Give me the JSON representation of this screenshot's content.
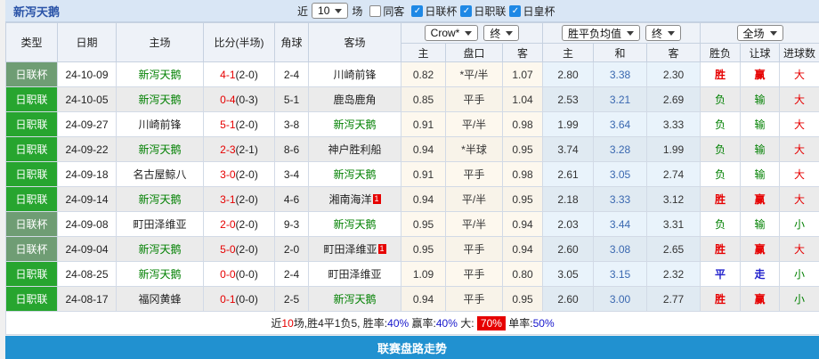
{
  "title": "新泻天鹅",
  "toolbar": {
    "recent_label": "近",
    "games_count": "10",
    "games_suffix": "场",
    "same_venue_label": "同客",
    "same_venue_checked": false,
    "leagues": [
      {
        "label": "日联杯",
        "checked": true
      },
      {
        "label": "日职联",
        "checked": true
      },
      {
        "label": "日皇杯",
        "checked": true
      }
    ]
  },
  "selectors": {
    "asia_provider": "Crow*",
    "asia_time": "终",
    "euro_type": "胜平负均值",
    "euro_time": "终",
    "scope": "全场"
  },
  "headers": {
    "type": "类型",
    "date": "日期",
    "home": "主场",
    "score": "比分(半场)",
    "corner": "角球",
    "away": "客场",
    "asia_home": "主",
    "handicap": "盘口",
    "asia_away": "客",
    "euro_home": "主",
    "euro_draw": "和",
    "euro_away": "客",
    "result": "胜负",
    "spread": "让球",
    "goals": "进球数"
  },
  "colors": {
    "accent_bar": "#2191d0",
    "self_team": "#008000",
    "score_red": "#e60000",
    "draw_blue": "#3a68b0"
  },
  "type_colors": {
    "日联杯": "#6f9d74",
    "日职联": "#27a52f"
  },
  "value_styles": {
    "胜": {
      "color": "#e60000",
      "bold": true
    },
    "负": {
      "color": "#008000",
      "bold": false
    },
    "平": {
      "color": "#2222cc",
      "bold": true
    },
    "赢": {
      "color": "#e60000",
      "bold": true
    },
    "输": {
      "color": "#008000",
      "bold": false
    },
    "走": {
      "color": "#2222cc",
      "bold": true
    },
    "大": {
      "color": "#e60000",
      "bold": false
    },
    "小": {
      "color": "#008000",
      "bold": false
    }
  },
  "rows": [
    {
      "type": "日联杯",
      "date": "24-10-09",
      "home": "新泻天鹅",
      "home_self": true,
      "home_badge": "",
      "score_ft": "4-1",
      "score_ht": "(2-0)",
      "corner": "2-4",
      "away": "川崎前锋",
      "away_self": false,
      "away_badge": "",
      "asia_home": "0.82",
      "handicap": "*平/半",
      "handicap_red": true,
      "asia_away": "1.07",
      "euro_home": "2.80",
      "euro_draw": "3.38",
      "euro_away": "2.30",
      "result": "胜",
      "spread": "赢",
      "goals": "大"
    },
    {
      "type": "日职联",
      "date": "24-10-05",
      "home": "新泻天鹅",
      "home_self": true,
      "home_badge": "",
      "score_ft": "0-4",
      "score_ht": "(0-3)",
      "corner": "5-1",
      "away": "鹿岛鹿角",
      "away_self": false,
      "away_badge": "",
      "asia_home": "0.85",
      "handicap": "平手",
      "handicap_red": false,
      "asia_away": "1.04",
      "euro_home": "2.53",
      "euro_draw": "3.21",
      "euro_away": "2.69",
      "result": "负",
      "spread": "输",
      "goals": "大"
    },
    {
      "type": "日职联",
      "date": "24-09-27",
      "home": "川崎前锋",
      "home_self": false,
      "home_badge": "",
      "score_ft": "5-1",
      "score_ht": "(2-0)",
      "corner": "3-8",
      "away": "新泻天鹅",
      "away_self": true,
      "away_badge": "",
      "asia_home": "0.91",
      "handicap": "平/半",
      "handicap_red": false,
      "asia_away": "0.98",
      "euro_home": "1.99",
      "euro_draw": "3.64",
      "euro_away": "3.33",
      "result": "负",
      "spread": "输",
      "goals": "大"
    },
    {
      "type": "日职联",
      "date": "24-09-22",
      "home": "新泻天鹅",
      "home_self": true,
      "home_badge": "",
      "score_ft": "2-3",
      "score_ht": "(2-1)",
      "corner": "8-6",
      "away": "神户胜利船",
      "away_self": false,
      "away_badge": "",
      "asia_home": "0.94",
      "handicap": "*半球",
      "handicap_red": true,
      "asia_away": "0.95",
      "euro_home": "3.74",
      "euro_draw": "3.28",
      "euro_away": "1.99",
      "result": "负",
      "spread": "输",
      "goals": "大"
    },
    {
      "type": "日职联",
      "date": "24-09-18",
      "home": "名古屋鲸八",
      "home_self": false,
      "home_badge": "",
      "score_ft": "3-0",
      "score_ht": "(2-0)",
      "corner": "3-4",
      "away": "新泻天鹅",
      "away_self": true,
      "away_badge": "",
      "asia_home": "0.91",
      "handicap": "平手",
      "handicap_red": false,
      "asia_away": "0.98",
      "euro_home": "2.61",
      "euro_draw": "3.05",
      "euro_away": "2.74",
      "result": "负",
      "spread": "输",
      "goals": "大"
    },
    {
      "type": "日职联",
      "date": "24-09-14",
      "home": "新泻天鹅",
      "home_self": true,
      "home_badge": "",
      "score_ft": "3-1",
      "score_ht": "(2-0)",
      "corner": "4-6",
      "away": "湘南海洋",
      "away_self": false,
      "away_badge": "1",
      "asia_home": "0.94",
      "handicap": "平/半",
      "handicap_red": false,
      "asia_away": "0.95",
      "euro_home": "2.18",
      "euro_draw": "3.33",
      "euro_away": "3.12",
      "result": "胜",
      "spread": "赢",
      "goals": "大"
    },
    {
      "type": "日联杯",
      "date": "24-09-08",
      "home": "町田泽维亚",
      "home_self": false,
      "home_badge": "",
      "score_ft": "2-0",
      "score_ht": "(2-0)",
      "corner": "9-3",
      "away": "新泻天鹅",
      "away_self": true,
      "away_badge": "",
      "asia_home": "0.95",
      "handicap": "平/半",
      "handicap_red": false,
      "asia_away": "0.94",
      "euro_home": "2.03",
      "euro_draw": "3.44",
      "euro_away": "3.31",
      "result": "负",
      "spread": "输",
      "goals": "小"
    },
    {
      "type": "日联杯",
      "date": "24-09-04",
      "home": "新泻天鹅",
      "home_self": true,
      "home_badge": "",
      "score_ft": "5-0",
      "score_ht": "(2-0)",
      "corner": "2-0",
      "away": "町田泽维亚",
      "away_self": false,
      "away_badge": "1",
      "asia_home": "0.95",
      "handicap": "平手",
      "handicap_red": false,
      "asia_away": "0.94",
      "euro_home": "2.60",
      "euro_draw": "3.08",
      "euro_away": "2.65",
      "result": "胜",
      "spread": "赢",
      "goals": "大"
    },
    {
      "type": "日职联",
      "date": "24-08-25",
      "home": "新泻天鹅",
      "home_self": true,
      "home_badge": "",
      "score_ft": "0-0",
      "score_ht": "(0-0)",
      "corner": "2-4",
      "away": "町田泽维亚",
      "away_self": false,
      "away_badge": "",
      "asia_home": "1.09",
      "handicap": "平手",
      "handicap_red": false,
      "asia_away": "0.80",
      "euro_home": "3.05",
      "euro_draw": "3.15",
      "euro_away": "2.32",
      "result": "平",
      "spread": "走",
      "goals": "小"
    },
    {
      "type": "日职联",
      "date": "24-08-17",
      "home": "福冈黄蜂",
      "home_self": false,
      "home_badge": "",
      "score_ft": "0-1",
      "score_ht": "(0-0)",
      "corner": "2-5",
      "away": "新泻天鹅",
      "away_self": true,
      "away_badge": "",
      "asia_home": "0.94",
      "handicap": "平手",
      "handicap_red": false,
      "asia_away": "0.95",
      "euro_home": "2.60",
      "euro_draw": "3.00",
      "euro_away": "2.77",
      "result": "胜",
      "spread": "赢",
      "goals": "小"
    }
  ],
  "summary": {
    "t1": "近",
    "games": "10",
    "t2": "场,胜4平1负5, 胜率:",
    "win_rate": "40%",
    "t3": " 赢率:",
    "asia_rate": "40%",
    "t4": " 大: ",
    "big_rate": "70%",
    "t5": " 单率:",
    "odd_rate": "50%"
  },
  "footer": {
    "trend_label": "联赛盘路走势"
  }
}
